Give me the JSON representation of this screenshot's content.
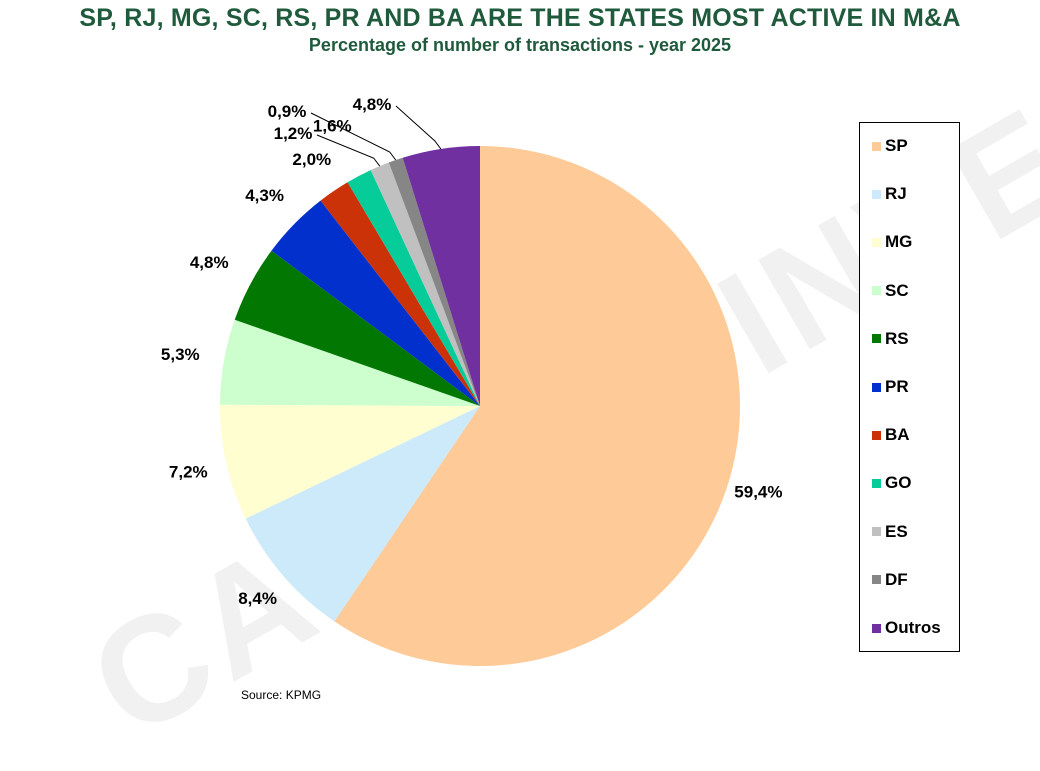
{
  "chart_data": {
    "type": "pie",
    "title": "SP, RJ, MG, SC, RS, PR AND BA ARE THE STATES MOST ACTIVE IN M&A",
    "subtitle": "Percentage of number of transactions - year 2025",
    "slices": [
      {
        "name": "SP",
        "value": 59.4,
        "label": "59,4%",
        "color": "#fdca98"
      },
      {
        "name": "RJ",
        "value": 8.4,
        "label": "8,4%",
        "color": "#cdeafb"
      },
      {
        "name": "MG",
        "value": 7.2,
        "label": "7,2%",
        "color": "#fefed0"
      },
      {
        "name": "SC",
        "value": 5.3,
        "label": "5,3%",
        "color": "#ccfece"
      },
      {
        "name": "RS",
        "value": 4.8,
        "label": "4,8%",
        "color": "#027702"
      },
      {
        "name": "PR",
        "value": 4.3,
        "label": "4,3%",
        "color": "#0230cc"
      },
      {
        "name": "BA",
        "value": 2.0,
        "label": "2,0%",
        "color": "#cb3208"
      },
      {
        "name": "GO",
        "value": 1.6,
        "label": "1,6%",
        "color": "#05cc99"
      },
      {
        "name": "ES",
        "value": 1.2,
        "label": "1,2%",
        "color": "#c0c0c0"
      },
      {
        "name": "DF",
        "value": 0.9,
        "label": "0,9%",
        "color": "#868686"
      },
      {
        "name": "Outros",
        "value": 4.8,
        "label": "4,8%",
        "color": "#7030a0"
      }
    ],
    "legend_position": "right",
    "source": "Source: KPMG"
  },
  "watermark": "CAPITAL INVEST"
}
